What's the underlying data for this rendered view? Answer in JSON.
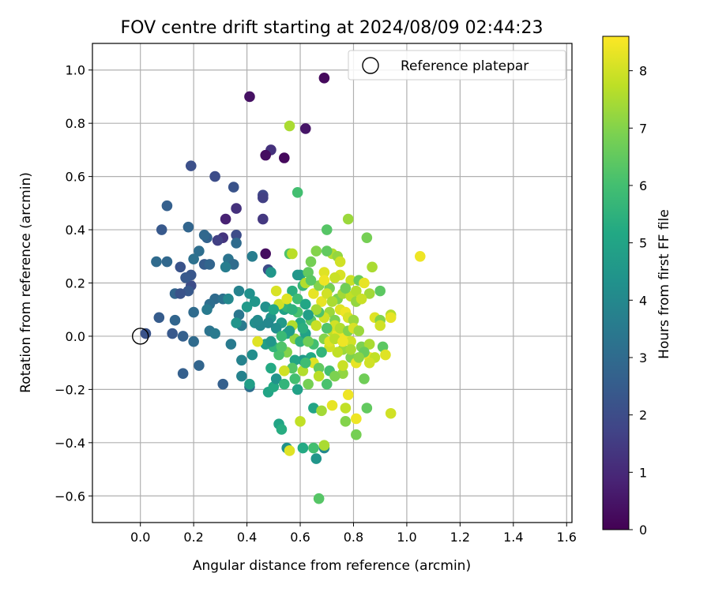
{
  "chart_data": {
    "type": "scatter",
    "title": "FOV centre drift starting at 2024/08/09 02:44:23",
    "xlabel": "Angular distance from reference (arcmin)",
    "ylabel": "Rotation from reference (arcmin)",
    "xlim": [
      -0.18,
      1.62
    ],
    "ylim": [
      -0.7,
      1.1
    ],
    "xticks": [
      "0.0",
      "0.2",
      "0.4",
      "0.6",
      "0.8",
      "1.0",
      "1.2",
      "1.4",
      "1.6"
    ],
    "xtick_values": [
      0.0,
      0.2,
      0.4,
      0.6,
      0.8,
      1.0,
      1.2,
      1.4,
      1.6
    ],
    "yticks": [
      "1.0",
      "0.8",
      "0.6",
      "0.4",
      "0.2",
      "0.0",
      "−0.2",
      "−0.4",
      "−0.6"
    ],
    "ytick_values": [
      1.0,
      0.8,
      0.6,
      0.4,
      0.2,
      0.0,
      -0.2,
      -0.4,
      -0.6
    ],
    "grid": true,
    "legend": {
      "position": "top-right",
      "entries": [
        "Reference platepar"
      ]
    },
    "reference_point": {
      "x": 0.0,
      "y": 0.0
    },
    "colorbar": {
      "label": "Hours from first FF file",
      "colormap": "viridis",
      "range": [
        0,
        8.6
      ],
      "ticks": [
        "0",
        "1",
        "2",
        "3",
        "4",
        "5",
        "6",
        "7",
        "8"
      ],
      "tick_values": [
        0,
        1,
        2,
        3,
        4,
        5,
        6,
        7,
        8
      ]
    },
    "points": [
      [
        0.41,
        0.9,
        0.4
      ],
      [
        0.69,
        0.97,
        0.2
      ],
      [
        0.62,
        0.78,
        0.5
      ],
      [
        0.49,
        0.7,
        1.2
      ],
      [
        0.47,
        0.68,
        0.3
      ],
      [
        0.54,
        0.67,
        0.2
      ],
      [
        0.56,
        0.79,
        7.5
      ],
      [
        0.19,
        0.64,
        2.1
      ],
      [
        0.28,
        0.6,
        2.0
      ],
      [
        0.35,
        0.56,
        2.2
      ],
      [
        0.46,
        0.53,
        1.8
      ],
      [
        0.46,
        0.52,
        1.6
      ],
      [
        0.36,
        0.48,
        1.2
      ],
      [
        0.46,
        0.44,
        1.4
      ],
      [
        0.32,
        0.44,
        0.8
      ],
      [
        0.47,
        0.31,
        0.3
      ],
      [
        0.31,
        0.37,
        1.3
      ],
      [
        0.29,
        0.36,
        1.6
      ],
      [
        0.36,
        0.38,
        2.0
      ],
      [
        0.1,
        0.49,
        2.6
      ],
      [
        0.08,
        0.4,
        2.4
      ],
      [
        0.25,
        0.37,
        2.7
      ],
      [
        0.18,
        0.41,
        2.8
      ],
      [
        0.24,
        0.38,
        2.9
      ],
      [
        0.36,
        0.35,
        3.0
      ],
      [
        0.22,
        0.32,
        3.1
      ],
      [
        0.2,
        0.29,
        3.2
      ],
      [
        0.06,
        0.28,
        3.0
      ],
      [
        0.1,
        0.28,
        2.9
      ],
      [
        0.15,
        0.26,
        2.2
      ],
      [
        0.19,
        0.23,
        2.3
      ],
      [
        0.24,
        0.27,
        2.5
      ],
      [
        0.26,
        0.27,
        2.8
      ],
      [
        0.33,
        0.29,
        3.3
      ],
      [
        0.35,
        0.27,
        3.0
      ],
      [
        0.42,
        0.3,
        3.6
      ],
      [
        0.48,
        0.25,
        2.0
      ],
      [
        0.49,
        0.24,
        4.5
      ],
      [
        0.19,
        0.19,
        2.0
      ],
      [
        0.18,
        0.17,
        2.4
      ],
      [
        0.13,
        0.16,
        2.8
      ],
      [
        0.15,
        0.16,
        2.2
      ],
      [
        0.17,
        0.22,
        2.4
      ],
      [
        0.28,
        0.14,
        3.0
      ],
      [
        0.26,
        0.12,
        3.1
      ],
      [
        0.31,
        0.14,
        3.2
      ],
      [
        0.33,
        0.14,
        4.0
      ],
      [
        0.37,
        0.17,
        3.8
      ],
      [
        0.41,
        0.16,
        4.3
      ],
      [
        0.43,
        0.13,
        4.5
      ],
      [
        0.47,
        0.11,
        4.3
      ],
      [
        0.49,
        0.07,
        4.4
      ],
      [
        0.2,
        0.09,
        3.0
      ],
      [
        0.25,
        0.1,
        3.5
      ],
      [
        0.32,
        0.26,
        3.6
      ],
      [
        0.37,
        0.08,
        3.4
      ],
      [
        0.38,
        0.04,
        3.5
      ],
      [
        0.36,
        0.05,
        4.4
      ],
      [
        0.43,
        0.05,
        4.2
      ],
      [
        0.45,
        0.04,
        4.0
      ],
      [
        0.4,
        0.11,
        4.6
      ],
      [
        0.07,
        0.07,
        2.5
      ],
      [
        0.13,
        0.06,
        2.8
      ],
      [
        0.02,
        0.01,
        2.2
      ],
      [
        0.12,
        0.01,
        2.4
      ],
      [
        0.16,
        0.0,
        2.6
      ],
      [
        0.2,
        -0.02,
        3.0
      ],
      [
        0.26,
        0.02,
        3.3
      ],
      [
        0.28,
        0.01,
        3.5
      ],
      [
        0.34,
        -0.03,
        3.5
      ],
      [
        0.38,
        -0.09,
        3.8
      ],
      [
        0.42,
        -0.07,
        4.2
      ],
      [
        0.22,
        -0.11,
        2.8
      ],
      [
        0.16,
        -0.14,
        2.6
      ],
      [
        0.31,
        -0.18,
        2.6
      ],
      [
        0.38,
        -0.15,
        3.8
      ],
      [
        0.41,
        -0.19,
        3.1
      ],
      [
        0.41,
        -0.18,
        4.8
      ],
      [
        0.48,
        -0.21,
        5.0
      ],
      [
        0.5,
        -0.19,
        5.2
      ],
      [
        0.52,
        -0.33,
        5.0
      ],
      [
        0.53,
        -0.35,
        5.3
      ],
      [
        0.55,
        -0.42,
        4.3
      ],
      [
        0.56,
        -0.43,
        8.2
      ],
      [
        0.6,
        -0.32,
        7.8
      ],
      [
        0.61,
        -0.42,
        5.2
      ],
      [
        0.65,
        -0.42,
        6.0
      ],
      [
        0.66,
        -0.46,
        4.5
      ],
      [
        0.69,
        -0.42,
        4.0
      ],
      [
        0.69,
        -0.41,
        7.5
      ],
      [
        0.67,
        -0.61,
        6.3
      ],
      [
        0.65,
        -0.27,
        5.0
      ],
      [
        0.68,
        -0.28,
        7.4
      ],
      [
        0.72,
        -0.26,
        8.3
      ],
      [
        0.77,
        -0.27,
        7.8
      ],
      [
        0.78,
        -0.22,
        8.4
      ],
      [
        0.77,
        -0.32,
        7.0
      ],
      [
        0.81,
        -0.31,
        8.4
      ],
      [
        0.81,
        -0.37,
        6.8
      ],
      [
        0.85,
        -0.27,
        6.5
      ],
      [
        0.94,
        -0.29,
        8.0
      ],
      [
        1.05,
        0.3,
        8.4
      ],
      [
        0.56,
        0.31,
        6.2
      ],
      [
        0.57,
        0.31,
        7.7
      ],
      [
        0.59,
        0.54,
        6.0
      ],
      [
        0.7,
        0.4,
        6.3
      ],
      [
        0.78,
        0.44,
        7.3
      ],
      [
        0.85,
        0.37,
        6.8
      ],
      [
        0.87,
        0.26,
        7.5
      ],
      [
        0.9,
        0.17,
        6.4
      ],
      [
        0.72,
        0.31,
        7.6
      ],
      [
        0.74,
        0.3,
        7.2
      ],
      [
        0.75,
        0.28,
        8.0
      ],
      [
        0.7,
        0.32,
        6.5
      ],
      [
        0.69,
        0.24,
        8.2
      ],
      [
        0.6,
        0.23,
        5.0
      ],
      [
        0.59,
        0.23,
        4.5
      ],
      [
        0.63,
        0.24,
        6.5
      ],
      [
        0.64,
        0.28,
        6.8
      ],
      [
        0.66,
        0.32,
        7.0
      ],
      [
        0.75,
        0.23,
        8.1
      ],
      [
        0.79,
        0.21,
        7.9
      ],
      [
        0.82,
        0.21,
        6.6
      ],
      [
        0.84,
        0.2,
        8.3
      ],
      [
        0.86,
        0.16,
        7.4
      ],
      [
        0.57,
        0.17,
        5.4
      ],
      [
        0.59,
        0.14,
        5.9
      ],
      [
        0.54,
        0.1,
        4.9
      ],
      [
        0.55,
        0.11,
        5.6
      ],
      [
        0.52,
        0.12,
        8.0
      ],
      [
        0.51,
        0.17,
        8.1
      ],
      [
        0.65,
        0.16,
        8.3
      ],
      [
        0.67,
        0.19,
        7.0
      ],
      [
        0.71,
        0.18,
        6.8
      ],
      [
        0.74,
        0.14,
        6.9
      ],
      [
        0.76,
        0.16,
        7.4
      ],
      [
        0.79,
        0.15,
        7.8
      ],
      [
        0.81,
        0.13,
        7.2
      ],
      [
        0.75,
        0.1,
        8.2
      ],
      [
        0.77,
        0.09,
        8.4
      ],
      [
        0.88,
        0.07,
        8.2
      ],
      [
        0.9,
        0.06,
        7.0
      ],
      [
        0.94,
        0.08,
        7.6
      ],
      [
        0.94,
        0.07,
        8.3
      ],
      [
        0.9,
        0.04,
        8.0
      ],
      [
        0.71,
        0.09,
        7.3
      ],
      [
        0.69,
        0.07,
        8.0
      ],
      [
        0.67,
        0.09,
        6.2
      ],
      [
        0.64,
        0.06,
        6.3
      ],
      [
        0.6,
        0.05,
        5.2
      ],
      [
        0.57,
        0.04,
        7.6
      ],
      [
        0.55,
        0.01,
        5.0
      ],
      [
        0.58,
        -0.01,
        7.2
      ],
      [
        0.6,
        -0.02,
        5.5
      ],
      [
        0.62,
        0.01,
        4.9
      ],
      [
        0.65,
        -0.03,
        6.0
      ],
      [
        0.72,
        0.02,
        7.8
      ],
      [
        0.74,
        0.01,
        8.3
      ],
      [
        0.77,
        0.0,
        8.4
      ],
      [
        0.79,
        -0.02,
        8.0
      ],
      [
        0.83,
        -0.04,
        6.9
      ],
      [
        0.86,
        -0.03,
        7.5
      ],
      [
        0.91,
        -0.04,
        6.4
      ],
      [
        0.92,
        -0.07,
        8.2
      ],
      [
        0.86,
        -0.08,
        8.3
      ],
      [
        0.88,
        -0.08,
        7.8
      ],
      [
        0.84,
        -0.06,
        6.6
      ],
      [
        0.79,
        -0.08,
        6.9
      ],
      [
        0.76,
        -0.05,
        7.3
      ],
      [
        0.74,
        -0.06,
        7.8
      ],
      [
        0.71,
        -0.04,
        8.0
      ],
      [
        0.68,
        -0.06,
        5.6
      ],
      [
        0.64,
        -0.08,
        5.2
      ],
      [
        0.61,
        -0.09,
        4.6
      ],
      [
        0.58,
        -0.09,
        5.0
      ],
      [
        0.55,
        -0.06,
        7.0
      ],
      [
        0.52,
        -0.07,
        6.1
      ],
      [
        0.5,
        -0.04,
        5.6
      ],
      [
        0.47,
        -0.03,
        4.8
      ],
      [
        0.49,
        -0.02,
        4.5
      ],
      [
        0.53,
        -0.04,
        6.2
      ],
      [
        0.57,
        -0.12,
        6.3
      ],
      [
        0.61,
        -0.13,
        7.6
      ],
      [
        0.65,
        -0.1,
        8.2
      ],
      [
        0.67,
        -0.12,
        6.5
      ],
      [
        0.71,
        -0.13,
        6.0
      ],
      [
        0.76,
        -0.14,
        7.2
      ],
      [
        0.76,
        -0.11,
        7.9
      ],
      [
        0.81,
        -0.1,
        8.3
      ],
      [
        0.84,
        -0.16,
        6.7
      ],
      [
        0.54,
        -0.13,
        8.0
      ],
      [
        0.58,
        -0.16,
        6.0
      ],
      [
        0.63,
        -0.18,
        6.8
      ],
      [
        0.67,
        -0.15,
        7.7
      ],
      [
        0.7,
        -0.18,
        6.1
      ],
      [
        0.73,
        -0.15,
        6.9
      ],
      [
        0.49,
        -0.12,
        5.2
      ],
      [
        0.51,
        -0.16,
        4.4
      ],
      [
        0.54,
        -0.18,
        5.6
      ],
      [
        0.59,
        -0.2,
        4.9
      ],
      [
        0.62,
        -0.1,
        5.9
      ],
      [
        0.44,
        -0.02,
        8.2
      ],
      [
        0.53,
        0.05,
        4.6
      ],
      [
        0.51,
        0.03,
        4.2
      ],
      [
        0.48,
        0.05,
        4.0
      ],
      [
        0.44,
        0.06,
        4.1
      ],
      [
        0.68,
        0.13,
        8.3
      ],
      [
        0.7,
        0.16,
        8.0
      ],
      [
        0.72,
        0.13,
        7.5
      ],
      [
        0.78,
        0.07,
        8.1
      ],
      [
        0.8,
        0.06,
        7.3
      ],
      [
        0.73,
        0.06,
        6.9
      ],
      [
        0.66,
        0.1,
        7.4
      ],
      [
        0.62,
        0.12,
        5.1
      ],
      [
        0.59,
        0.09,
        6.1
      ],
      [
        0.63,
        0.08,
        4.8
      ],
      [
        0.61,
        0.03,
        5.4
      ],
      [
        0.57,
        0.1,
        5.5
      ],
      [
        0.56,
        0.02,
        4.7
      ],
      [
        0.53,
        0.0,
        5.8
      ],
      [
        0.5,
        0.1,
        5.1
      ],
      [
        0.55,
        0.14,
        8.2
      ],
      [
        0.61,
        0.19,
        5.7
      ],
      [
        0.62,
        0.2,
        7.6
      ],
      [
        0.64,
        0.21,
        6.4
      ],
      [
        0.69,
        0.21,
        8.4
      ],
      [
        0.73,
        0.22,
        7.9
      ],
      [
        0.77,
        0.18,
        6.7
      ],
      [
        0.81,
        0.17,
        7.6
      ],
      [
        0.83,
        0.14,
        7.9
      ],
      [
        0.73,
        0.04,
        8.0
      ],
      [
        0.75,
        0.03,
        7.6
      ],
      [
        0.78,
        0.02,
        7.0
      ],
      [
        0.8,
        0.03,
        8.1
      ],
      [
        0.82,
        0.02,
        7.3
      ],
      [
        0.69,
        -0.01,
        7.0
      ],
      [
        0.71,
        -0.02,
        8.2
      ],
      [
        0.73,
        -0.01,
        7.7
      ],
      [
        0.76,
        -0.02,
        8.4
      ],
      [
        0.79,
        -0.05,
        7.5
      ],
      [
        0.82,
        -0.08,
        7.1
      ],
      [
        0.86,
        -0.1,
        8.0
      ],
      [
        0.7,
        0.03,
        6.2
      ],
      [
        0.66,
        0.04,
        7.9
      ],
      [
        0.63,
        -0.02,
        6.7
      ]
    ]
  }
}
